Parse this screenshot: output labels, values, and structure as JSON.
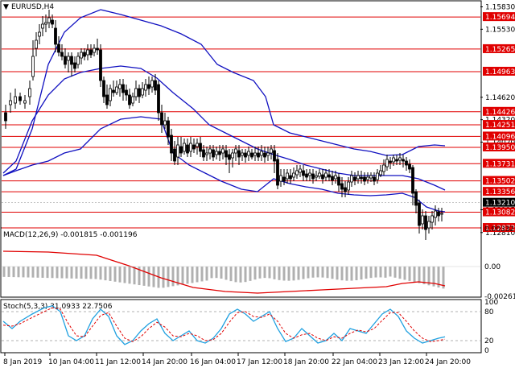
{
  "chart_header": {
    "symbol": "EURUSD,H4",
    "arrow_glyph": "▼"
  },
  "main_panel": {
    "price_axis_ticks": [
      "1.15830",
      "1.15530",
      "1.14620",
      "1.14320",
      "1.14020",
      "1.13115",
      "1.12810"
    ],
    "levels": [
      {
        "label": "1.15694",
        "color": "#e00000"
      },
      {
        "label": "1.15265",
        "color": "#e00000"
      },
      {
        "label": "1.14963",
        "color": "#e00000"
      },
      {
        "label": "1.14426",
        "color": "#e00000"
      },
      {
        "label": "1.14251",
        "color": "#e00000"
      },
      {
        "label": "1.14096",
        "color": "#e00000"
      },
      {
        "label": "1.13950",
        "color": "#e00000"
      },
      {
        "label": "1.13731",
        "color": "#e00000"
      },
      {
        "label": "1.13502",
        "color": "#e00000"
      },
      {
        "label": "1.13356",
        "color": "#e00000"
      },
      {
        "label": "1.13082",
        "color": "#e00000"
      },
      {
        "label": "1.12872",
        "color": "#e00000"
      }
    ],
    "current_price": {
      "label": "1.13210",
      "color": "#000000"
    },
    "band_color": "#1010c0"
  },
  "macd_panel": {
    "title": "MACD(12,26,9) -0.001815 -0.001196",
    "axis_ticks": [
      "0.003325",
      "0.00",
      "-0.002618"
    ],
    "histogram_color": "#b0b0b0",
    "signal_color": "#e00000"
  },
  "stoch_panel": {
    "title": "Stoch(5,3,3) 31.0933 22.7506",
    "axis_ticks": [
      "100",
      "80",
      "20",
      "0"
    ],
    "main_color": "#1fa0e0",
    "signal_color": "#e00000"
  },
  "time_axis": [
    "8 Jan 2019",
    "10 Jan 04:00",
    "11 Jan 12:00",
    "14 Jan 20:00",
    "16 Jan 04:00",
    "17 Jan 12:00",
    "18 Jan 20:00",
    "22 Jan 04:00",
    "23 Jan 12:00",
    "24 Jan 20:00"
  ],
  "chart_data": {
    "type": "candlestick",
    "title": "EURUSD,H4",
    "x": [
      "8 Jan 2019",
      "10 Jan 04:00",
      "11 Jan 12:00",
      "14 Jan 20:00",
      "16 Jan 04:00",
      "17 Jan 12:00",
      "18 Jan 20:00",
      "22 Jan 04:00",
      "23 Jan 12:00",
      "24 Jan 20:00"
    ],
    "ylim": [
      1.127,
      1.159
    ],
    "horizontal_levels": [
      1.15694,
      1.15265,
      1.14963,
      1.14426,
      1.14251,
      1.14096,
      1.1395,
      1.13731,
      1.13502,
      1.13356,
      1.13082,
      1.12872
    ],
    "last_price": 1.1321,
    "indicators": {
      "macd": {
        "params": "12,26,9",
        "main": -0.001815,
        "signal": -0.001196,
        "ylim": [
          -0.002618,
          0.003325
        ]
      },
      "stochastic": {
        "params": "5,3,3",
        "main": 31.0933,
        "signal": 22.7506,
        "ylim": [
          0,
          100
        ],
        "levels": [
          80,
          20
        ]
      }
    }
  }
}
